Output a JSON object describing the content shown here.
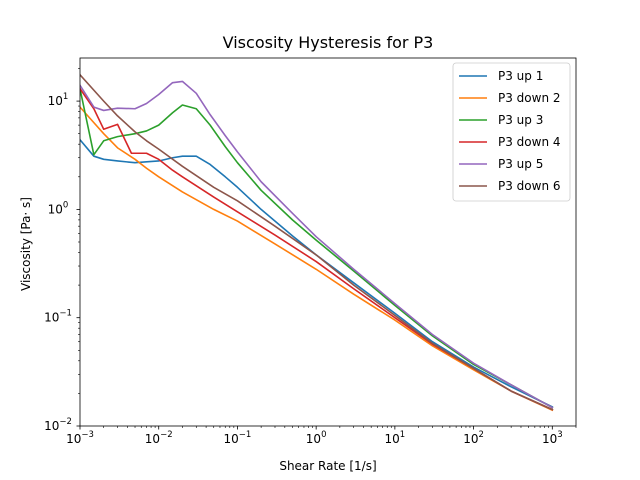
{
  "chart_data": {
    "type": "line",
    "title": "Viscosity Hysteresis for P3",
    "xlabel": "Shear Rate [1/s]",
    "ylabel": "Viscosity [Pa· s]",
    "xscale": "log",
    "yscale": "log",
    "xlim": [
      0.001,
      2000
    ],
    "ylim": [
      0.01,
      25
    ],
    "xticks": [
      {
        "value": 0.001,
        "base": "10",
        "exp": "−3"
      },
      {
        "value": 0.01,
        "base": "10",
        "exp": "−2"
      },
      {
        "value": 0.1,
        "base": "10",
        "exp": "−1"
      },
      {
        "value": 1,
        "base": "10",
        "exp": "0"
      },
      {
        "value": 10,
        "base": "10",
        "exp": "1"
      },
      {
        "value": 100,
        "base": "10",
        "exp": "2"
      },
      {
        "value": 1000,
        "base": "10",
        "exp": "3"
      }
    ],
    "yticks": [
      {
        "value": 0.01,
        "base": "10",
        "exp": "−2"
      },
      {
        "value": 0.1,
        "base": "10",
        "exp": "−1"
      },
      {
        "value": 1,
        "base": "10",
        "exp": "0"
      },
      {
        "value": 10,
        "base": "10",
        "exp": "1"
      }
    ],
    "grid": false,
    "legend_position": "top-right",
    "series": [
      {
        "name": "P3 up 1",
        "color": "#1f77b4",
        "x": [
          0.001,
          0.0015,
          0.002,
          0.003,
          0.005,
          0.007,
          0.01,
          0.015,
          0.02,
          0.03,
          0.045,
          0.07,
          0.1,
          0.2,
          0.5,
          1,
          3,
          10,
          30,
          100,
          300,
          1000
        ],
        "y": [
          4.4,
          3.1,
          2.9,
          2.8,
          2.7,
          2.75,
          2.8,
          3.0,
          3.1,
          3.1,
          2.6,
          2.0,
          1.6,
          1.0,
          0.57,
          0.38,
          0.21,
          0.11,
          0.06,
          0.035,
          0.023,
          0.015
        ]
      },
      {
        "name": "P3 down 2",
        "color": "#ff7f0e",
        "x": [
          0.001,
          0.002,
          0.003,
          0.005,
          0.007,
          0.01,
          0.02,
          0.05,
          0.1,
          0.3,
          1,
          3,
          10,
          30,
          100,
          300,
          1000
        ],
        "y": [
          8.8,
          5.0,
          3.7,
          2.9,
          2.4,
          2.0,
          1.45,
          1.0,
          0.78,
          0.48,
          0.28,
          0.165,
          0.095,
          0.055,
          0.033,
          0.021,
          0.014
        ]
      },
      {
        "name": "P3 up 3",
        "color": "#2ca02c",
        "x": [
          0.001,
          0.0015,
          0.002,
          0.003,
          0.005,
          0.007,
          0.01,
          0.015,
          0.02,
          0.03,
          0.045,
          0.07,
          0.1,
          0.2,
          0.5,
          1,
          3,
          10,
          30,
          100,
          300,
          1000
        ],
        "y": [
          13.0,
          3.2,
          4.3,
          4.7,
          5.0,
          5.3,
          6.0,
          7.8,
          9.2,
          8.5,
          6.0,
          3.8,
          2.7,
          1.5,
          0.8,
          0.52,
          0.27,
          0.13,
          0.068,
          0.037,
          0.024,
          0.0148
        ]
      },
      {
        "name": "P3 down 4",
        "color": "#d62728",
        "x": [
          0.001,
          0.0015,
          0.002,
          0.003,
          0.0045,
          0.007,
          0.01,
          0.015,
          0.02,
          0.05,
          0.1,
          0.3,
          1,
          3,
          10,
          30,
          100,
          300,
          1000
        ],
        "y": [
          13.0,
          8.5,
          5.5,
          6.1,
          3.3,
          3.3,
          2.9,
          2.3,
          2.0,
          1.3,
          0.95,
          0.58,
          0.33,
          0.185,
          0.1,
          0.057,
          0.034,
          0.021,
          0.0142
        ]
      },
      {
        "name": "P3 up 5",
        "color": "#9467bd",
        "x": [
          0.001,
          0.0015,
          0.002,
          0.003,
          0.005,
          0.007,
          0.01,
          0.015,
          0.02,
          0.03,
          0.045,
          0.07,
          0.1,
          0.2,
          0.5,
          1,
          3,
          10,
          30,
          100,
          300,
          1000
        ],
        "y": [
          14.0,
          8.8,
          8.2,
          8.6,
          8.5,
          9.5,
          11.5,
          14.8,
          15.2,
          11.8,
          7.5,
          4.8,
          3.4,
          1.8,
          0.92,
          0.56,
          0.28,
          0.135,
          0.07,
          0.038,
          0.024,
          0.0148
        ]
      },
      {
        "name": "P3 down 6",
        "color": "#8c564b",
        "x": [
          0.001,
          0.002,
          0.003,
          0.005,
          0.007,
          0.01,
          0.02,
          0.05,
          0.1,
          0.3,
          1,
          3,
          10,
          30,
          100,
          300,
          1000
        ],
        "y": [
          17.5,
          10.0,
          7.3,
          5.2,
          4.3,
          3.6,
          2.5,
          1.6,
          1.2,
          0.7,
          0.38,
          0.2,
          0.105,
          0.058,
          0.034,
          0.021,
          0.0142
        ]
      }
    ]
  }
}
